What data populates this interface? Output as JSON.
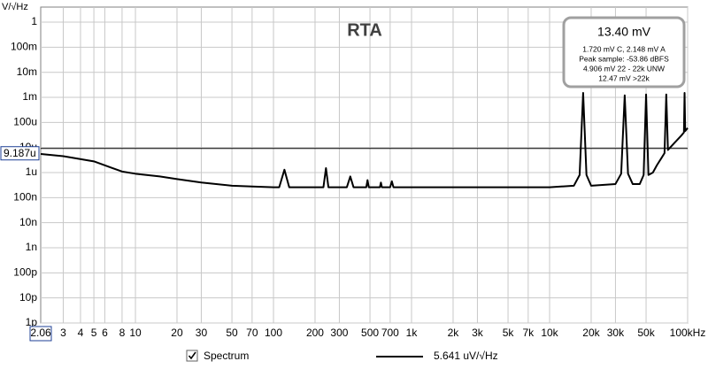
{
  "chart_data": {
    "type": "line",
    "title": "RTA",
    "y_label": "V/√Hz",
    "xscale": "log",
    "yscale": "log",
    "grid": true,
    "xlim": [
      2.06,
      100000
    ],
    "ylim": [
      1e-12,
      4
    ],
    "xticks": [
      3,
      4,
      5,
      6,
      8,
      10,
      20,
      30,
      50,
      70,
      100,
      200,
      300,
      500,
      700,
      {
        "value": 1000,
        "label": "1k"
      },
      {
        "value": 2000,
        "label": "2k"
      },
      {
        "value": 3000,
        "label": "3k"
      },
      {
        "value": 5000,
        "label": "5k"
      },
      {
        "value": 7000,
        "label": "7k"
      },
      {
        "value": 10000,
        "label": "10k"
      },
      {
        "value": 20000,
        "label": "20k"
      },
      {
        "value": 30000,
        "label": "30k"
      },
      {
        "value": 50000,
        "label": "50k"
      },
      {
        "value": 100000,
        "label": "100kHz"
      }
    ],
    "yticks": [
      1,
      {
        "value": 0.1,
        "label": "100m"
      },
      {
        "value": 0.01,
        "label": "10m"
      },
      {
        "value": 0.001,
        "label": "1m"
      },
      {
        "value": 0.0001,
        "label": "100u"
      },
      {
        "value": 1e-05,
        "label": "10u"
      },
      {
        "value": 1e-06,
        "label": "1u"
      },
      {
        "value": 1e-07,
        "label": "100n"
      },
      {
        "value": 1e-08,
        "label": "10n"
      },
      {
        "value": 1e-09,
        "label": "1n"
      },
      {
        "value": 1e-10,
        "label": "100p"
      },
      {
        "value": 1e-11,
        "label": "10p"
      },
      {
        "value": 1e-12,
        "label": "1p"
      }
    ],
    "cursor_x": 2.06,
    "cursor_y": {
      "value": 9.187e-06,
      "label": "9.187u"
    },
    "series": [
      {
        "name": "Spectrum",
        "color": "#000000",
        "reading": "5.641 uV/√Hz",
        "x": [
          2.06,
          3,
          5,
          8,
          10,
          15,
          20,
          30,
          50,
          70,
          100,
          110,
          120,
          130,
          230,
          240,
          250,
          340,
          360,
          380,
          470,
          480,
          490,
          590,
          600,
          610,
          700,
          720,
          740,
          1000,
          2000,
          5000,
          10000,
          15000,
          16500,
          17500,
          18500,
          20000,
          30000,
          33000,
          35000,
          37000,
          40000,
          45000,
          48000,
          50000,
          52000,
          56000,
          60000,
          65000,
          68000,
          70000,
          72000,
          80000,
          90000,
          94000,
          95000,
          96000,
          100000
        ],
        "values": [
          5.5e-06,
          4.5e-06,
          2.8e-06,
          1.1e-06,
          9e-07,
          7e-07,
          5.5e-07,
          4e-07,
          3e-07,
          2.8e-07,
          2.6e-07,
          2.6e-07,
          1.3e-06,
          2.6e-07,
          2.6e-07,
          1.5e-06,
          2.6e-07,
          2.6e-07,
          7e-07,
          2.6e-07,
          2.6e-07,
          5e-07,
          2.6e-07,
          2.6e-07,
          4e-07,
          2.6e-07,
          2.6e-07,
          4.5e-07,
          2.6e-07,
          2.6e-07,
          2.6e-07,
          2.6e-07,
          2.6e-07,
          3e-07,
          8e-07,
          0.0015,
          8e-07,
          3e-07,
          3.5e-07,
          9e-07,
          0.0012,
          9e-07,
          3.5e-07,
          3.5e-07,
          8e-07,
          0.0013,
          8e-07,
          1e-06,
          2e-06,
          4e-06,
          6e-06,
          0.0013,
          8e-06,
          1.5e-05,
          3e-05,
          4e-05,
          0.0015,
          4.5e-05,
          6e-05
        ]
      }
    ],
    "info_box": {
      "title": "13.40 mV",
      "lines": [
        "1.720 mV C, 2.148 mV A",
        "Peak sample: -53.86 dBFS",
        "4.906 mV 22 - 22k UNW",
        "12.47 mV >22k"
      ]
    }
  }
}
